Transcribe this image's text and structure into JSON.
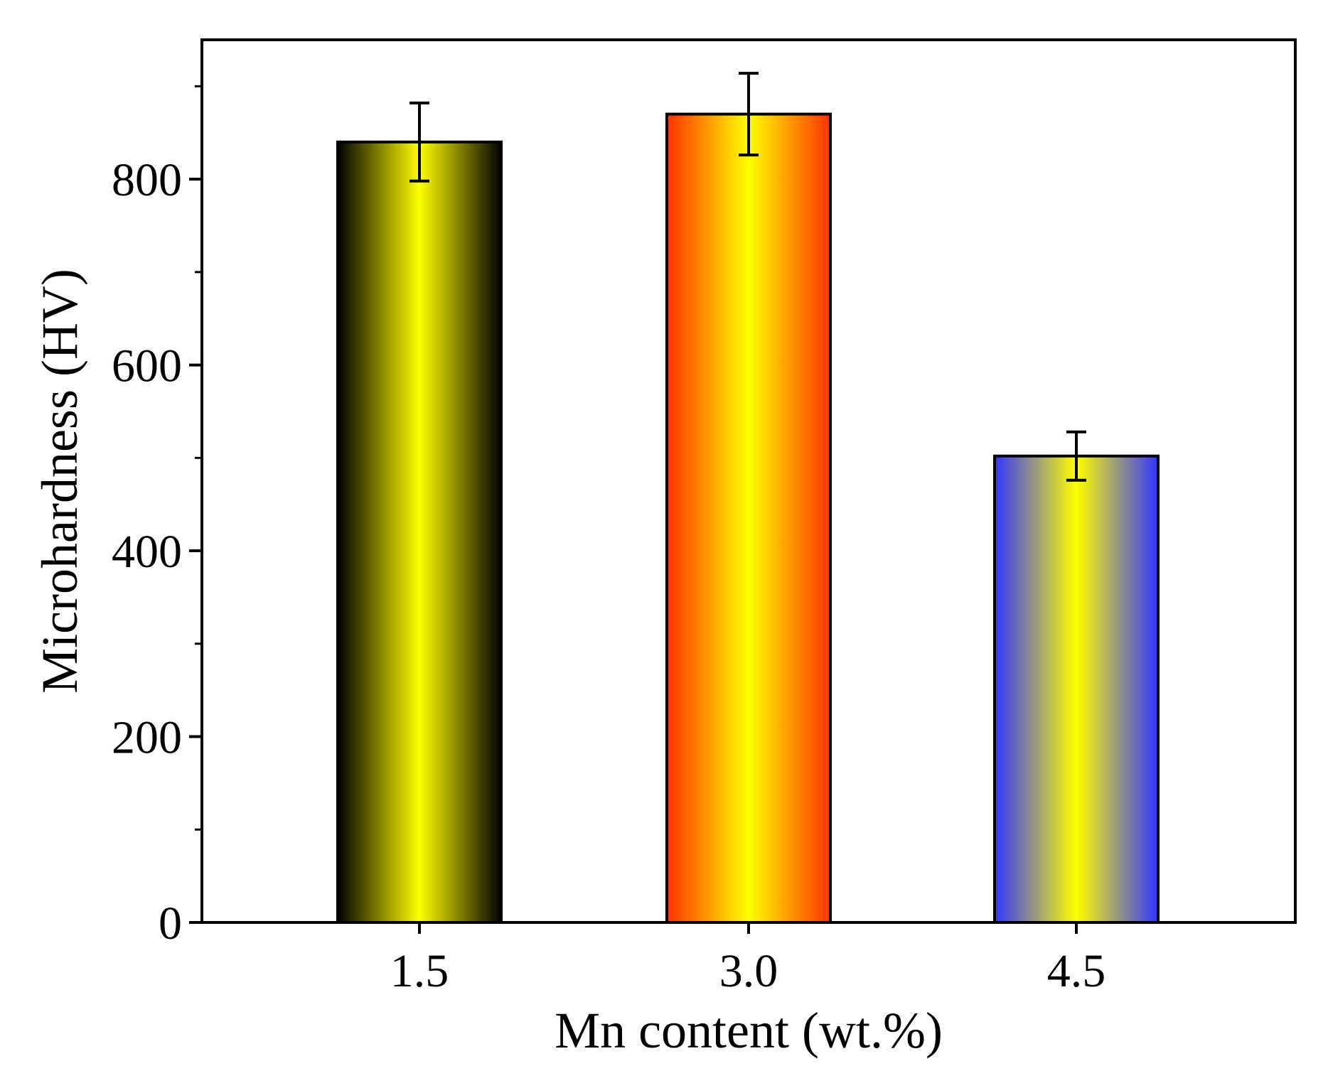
{
  "chart_data": {
    "type": "bar",
    "title": "",
    "xlabel": "Mn content (wt.%)",
    "ylabel": "Microhardness (HV)",
    "categories": [
      "1.5",
      "3.0",
      "4.5"
    ],
    "values": [
      840,
      870,
      502
    ],
    "errors": [
      42,
      44,
      26
    ],
    "ylim": [
      0,
      950
    ],
    "yticks": [
      0,
      200,
      400,
      600,
      800
    ],
    "ytick_labels": [
      "0",
      "200",
      "400",
      "600",
      "800"
    ],
    "y_minor_step": 100,
    "grid": false,
    "legend": false,
    "bar_gradients": [
      [
        "#000000",
        "#ffff00"
      ],
      [
        "#ff3300",
        "#ffff00"
      ],
      [
        "#3333ff",
        "#ffff00"
      ]
    ]
  }
}
